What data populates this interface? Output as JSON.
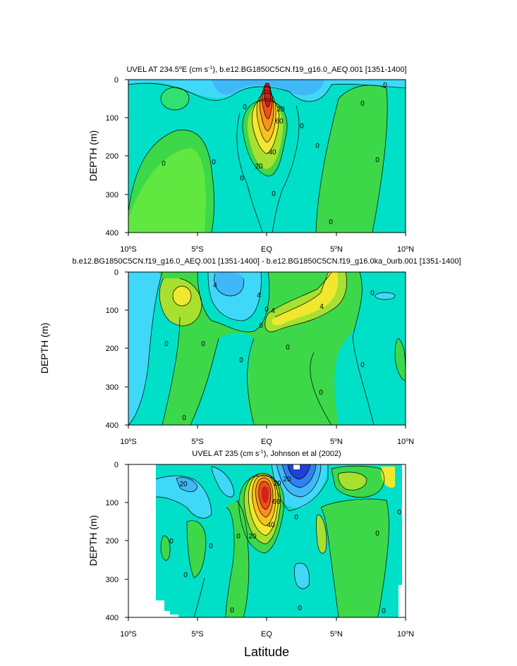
{
  "chart_data": [
    {
      "type": "contour",
      "title_prefix": "UVEL AT 234.5",
      "title_deg": "o",
      "title_mid": "E (cm s",
      "title_exp": "-1",
      "title_suffix": "), b.e12.BG1850C5CN.f19_g16.0_AEQ.001 [1351-1400]",
      "ylabel": "DEPTH (m)",
      "yticks": [
        "0",
        "100",
        "200",
        "300",
        "400"
      ],
      "xticks": [
        {
          "n": "10",
          "h": "S"
        },
        {
          "n": "5",
          "h": "S"
        },
        {
          "n": "EQ",
          "h": ""
        },
        {
          "n": "5",
          "h": "N"
        },
        {
          "n": "10",
          "h": "N"
        }
      ],
      "ylim": [
        0,
        400
      ],
      "xlim": [
        -10,
        10
      ],
      "contour_labels": [
        "0",
        "0",
        "0",
        "0",
        "0",
        "0",
        "0",
        "20",
        "20",
        "40",
        "60",
        "0",
        "0",
        "0",
        "0"
      ]
    },
    {
      "type": "contour",
      "title": "b.e12.BG1850C5CN.f19_g16.0_AEQ.001 [1351-1400] - b.e12.BG1850C5CN.f19_g16.0ka_0urb.001 [1351-1400]",
      "ylabel": "DEPTH (m)",
      "yticks": [
        "0",
        "100",
        "200",
        "300",
        "400"
      ],
      "xticks": [
        {
          "n": "10",
          "h": "S"
        },
        {
          "n": "5",
          "h": "S"
        },
        {
          "n": "EQ",
          "h": ""
        },
        {
          "n": "5",
          "h": "N"
        },
        {
          "n": "10",
          "h": "N"
        }
      ],
      "ylim": [
        0,
        400
      ],
      "xlim": [
        -10,
        10
      ],
      "contour_labels": [
        "4",
        "4",
        "0",
        "4",
        "4",
        "0",
        "0",
        "0",
        "0",
        "0",
        "0",
        "0",
        "0",
        "0"
      ]
    },
    {
      "type": "contour",
      "title_prefix": "UVEL AT 235 (cm s",
      "title_exp": "-1",
      "title_suffix": "), Johnson et al (2002)",
      "ylabel": "DEPTH (m)",
      "yticks": [
        "0",
        "100",
        "200",
        "300",
        "400"
      ],
      "xticks": [
        {
          "n": "10",
          "h": "S"
        },
        {
          "n": "5",
          "h": "S"
        },
        {
          "n": "EQ",
          "h": ""
        },
        {
          "n": "5",
          "h": "N"
        },
        {
          "n": "10",
          "h": "N"
        }
      ],
      "ylim": [
        0,
        400
      ],
      "xlim": [
        -10,
        10
      ],
      "contour_labels": [
        "20",
        "0",
        "0",
        "0",
        "0",
        "0",
        "20",
        "40",
        "60",
        "20",
        "20",
        "0",
        "0",
        "0",
        "0",
        "0"
      ]
    }
  ],
  "xlabel": "Latitude"
}
